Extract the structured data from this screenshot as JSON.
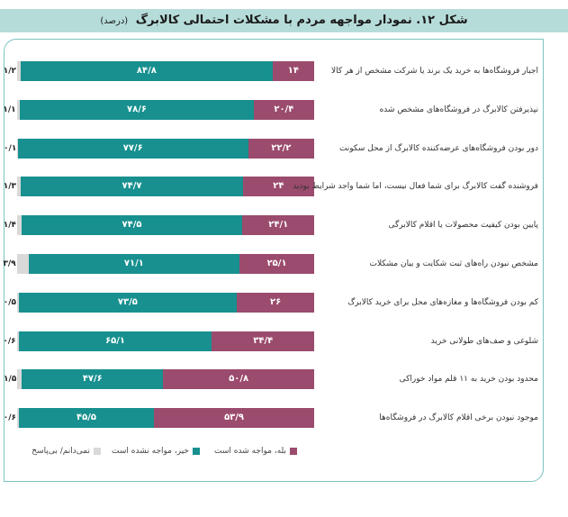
{
  "header": {
    "title": "شکل ۱۲. نمودار مواجهه مردم با مشکلات احتمالی کالابرگ",
    "unit": "(درصد)"
  },
  "colors": {
    "yes": "#9b4b6d",
    "no": "#17908f",
    "dk": "#d9d9d9",
    "header": "#b6dcd9",
    "frame": "#7cc3c2"
  },
  "chart_data": {
    "type": "bar",
    "orientation": "horizontal",
    "stacked": true,
    "title": "شکل ۱۲. نمودار مواجهه مردم با مشکلات احتمالی کالابرگ",
    "categories": [
      "اجبار فروشگاه‌ها به خرید یک برند یا شرکت مشخص از هر کالا",
      "نپذیرفتن کالابرگ در فروشگاه‌های مشخص شده",
      "دور بودن فروشگاه‌های عرضه‌کننده کالابرگ از محل سکونت",
      "فروشنده گفت کالابرگ برای شما فعال نیست، اما شما واجد شرایط بودید",
      "پایین بودن کیفیت محصولات یا اقلام کالابرگی",
      "مشخص نبودن راه‌های ثبت شکایت و بیان مشکلات",
      "کم بودن فروشگاه‌ها و مغازه‌های محل برای خرید کالابرگ",
      "شلوغی و صف‌های طولانی خرید",
      "محدود بودن خرید به ۱۱ قلم مواد خوراکی",
      "موجود نبودن برخی اقلام کالابرگ در فروشگاه‌ها"
    ],
    "series": [
      {
        "name": "بله، مواجه شده است",
        "key": "yes",
        "values": [
          14,
          20.4,
          22.2,
          24,
          24.1,
          25.1,
          26,
          34.4,
          50.8,
          53.9
        ],
        "labels": [
          "۱۴",
          "۲۰/۴",
          "۲۲/۲",
          "۲۴",
          "۲۴/۱",
          "۲۵/۱",
          "۲۶",
          "۳۴/۴",
          "۵۰/۸",
          "۵۳/۹"
        ]
      },
      {
        "name": "خیر، مواجه نشده است",
        "key": "no",
        "values": [
          84.8,
          78.6,
          77.6,
          74.7,
          74.5,
          71.1,
          73.5,
          65.1,
          47.6,
          45.5
        ],
        "labels": [
          "۸۴/۸",
          "۷۸/۶",
          "۷۷/۶",
          "۷۴/۷",
          "۷۴/۵",
          "۷۱/۱",
          "۷۳/۵",
          "۶۵/۱",
          "۴۷/۶",
          "۴۵/۵"
        ]
      },
      {
        "name": "نمی‌دانم/ بی‌پاسخ",
        "key": "dk",
        "values": [
          1.2,
          1.1,
          0.1,
          1.3,
          1.4,
          3.9,
          0.5,
          0.6,
          1.5,
          0.6
        ],
        "labels": [
          "۱/۲",
          "۱/۱",
          "۰/۱",
          "۱/۳",
          "۱/۴",
          "۳/۹",
          "۰/۵",
          "۰/۶",
          "۱/۵",
          "۰/۶"
        ]
      }
    ],
    "xlim": [
      0,
      100
    ],
    "legend": "bottom"
  }
}
